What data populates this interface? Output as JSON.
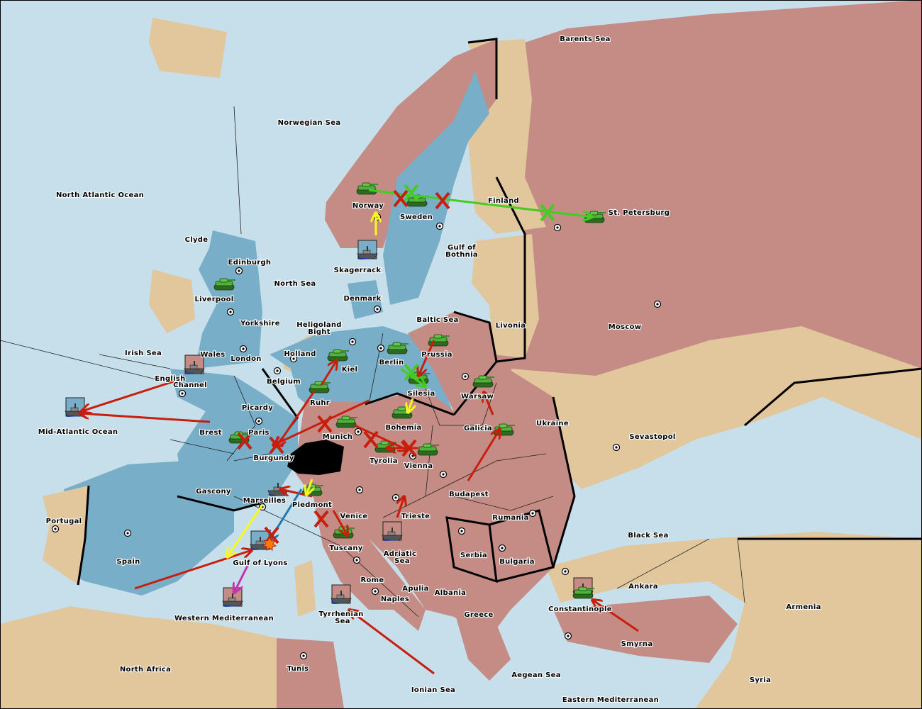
{
  "map": {
    "colors": {
      "sea": "#c6dfea",
      "blue_power": "#78aec8",
      "pink_power": "#c48c84",
      "neutral": "#e2c69c",
      "switzerland": "#000000",
      "army": "#3c9a2c",
      "order_move": "#c81e0e",
      "order_green": "#44cc22",
      "order_yellow": "#f8f820",
      "order_blue": "#1e78b4",
      "order_magenta": "#c830b0"
    },
    "labels": [
      "Barents Sea",
      "Norwegian Sea",
      "North Atlantic Ocean",
      "Clyde",
      "Edinburgh",
      "North Sea",
      "Liverpool",
      "Yorkshire",
      "Irish Sea",
      "Wales",
      "London",
      "English",
      "Channel",
      "Mid-Atlantic Ocean",
      "Brest",
      "Picardy",
      "Paris",
      "Burgundy",
      "Gascony",
      "Marseilles",
      "Portugal",
      "Spain",
      "Gulf of Lyons",
      "Western Mediterranean",
      "North Africa",
      "Tunis",
      "Holland",
      "Belgium",
      "Ruhr",
      "Kiel",
      "Heligoland",
      "Bight",
      "Denmark",
      "Skagerrack",
      "Norway",
      "Sweden",
      "Gulf of",
      "Bothnia",
      "Baltic Sea",
      "Berlin",
      "Prussia",
      "Silesia",
      "Munich",
      "Bohemia",
      "Tyrolia",
      "Vienna",
      "Galicia",
      "Warsaw",
      "Livonia",
      "Moscow",
      "Finland",
      "St. Petersburg",
      "Ukraine",
      "Sevastopol",
      "Budapest",
      "Piedmont",
      "Venice",
      "Trieste",
      "Tuscany",
      "Adriatic",
      "Sea",
      "Rome",
      "Apulia",
      "Naples",
      "Albania",
      "Serbia",
      "Bulgaria",
      "Rumania",
      "Black Sea",
      "Ankara",
      "Armenia",
      "Constantinople",
      "Smyrna",
      "Greece",
      "Aegean Sea",
      "Eastern Mediterranean",
      "Ionian Sea",
      "Tyrrhenian",
      "Sea",
      "Syria"
    ],
    "units": [
      {
        "type": "army",
        "at": "Norway",
        "power": "pink"
      },
      {
        "type": "army",
        "at": "Sweden",
        "power": "pink"
      },
      {
        "type": "army",
        "at": "St. Petersburg",
        "power": "pink"
      },
      {
        "type": "army",
        "at": "Liverpool",
        "power": "blue"
      },
      {
        "type": "army",
        "at": "Kiel",
        "power": "blue"
      },
      {
        "type": "army",
        "at": "Berlin",
        "power": "blue"
      },
      {
        "type": "army",
        "at": "Prussia",
        "power": "pink"
      },
      {
        "type": "army",
        "at": "Silesia",
        "power": "blue"
      },
      {
        "type": "army",
        "at": "Ruhr",
        "power": "blue"
      },
      {
        "type": "army",
        "at": "Bohemia",
        "power": "pink"
      },
      {
        "type": "army",
        "at": "Munich",
        "power": "pink"
      },
      {
        "type": "army",
        "at": "Warsaw",
        "power": "pink"
      },
      {
        "type": "army",
        "at": "Galicia",
        "power": "pink"
      },
      {
        "type": "army",
        "at": "Tyrolia",
        "power": "pink"
      },
      {
        "type": "army",
        "at": "Vienna",
        "power": "pink"
      },
      {
        "type": "army",
        "at": "Paris",
        "power": "blue"
      },
      {
        "type": "army",
        "at": "Piedmont",
        "power": "pink"
      },
      {
        "type": "army",
        "at": "Tuscany",
        "power": "pink"
      },
      {
        "type": "army",
        "at": "Constantinople",
        "power": "pink"
      },
      {
        "type": "fleet",
        "at": "English Channel",
        "power": "pink"
      },
      {
        "type": "fleet",
        "at": "Mid-Atlantic Ocean",
        "power": "blue"
      },
      {
        "type": "fleet",
        "at": "Skagerrack",
        "power": "blue"
      },
      {
        "type": "fleet",
        "at": "Marseilles",
        "power": "blue"
      },
      {
        "type": "fleet",
        "at": "Gulf of Lyons",
        "power": "blue"
      },
      {
        "type": "fleet",
        "at": "Western Mediterranean",
        "power": "pink"
      },
      {
        "type": "fleet",
        "at": "Adriatic Sea",
        "power": "pink"
      },
      {
        "type": "fleet",
        "at": "Tyrrhenian Sea",
        "power": "pink"
      },
      {
        "type": "fleet",
        "at": "Constantinople",
        "power": "pink"
      }
    ]
  }
}
